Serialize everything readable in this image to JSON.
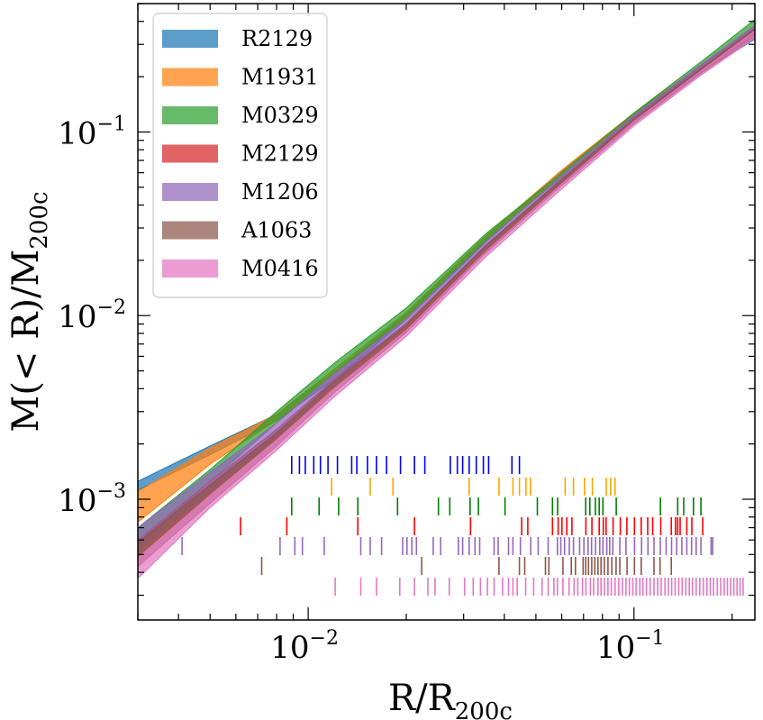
{
  "chart_data": {
    "type": "line",
    "xscale": "log",
    "yscale": "log",
    "xlim": [
      0.003,
      0.235
    ],
    "ylim": [
      0.00022,
      0.5
    ],
    "xlabel": "R/R",
    "xlabel_sub": "200c",
    "ylabel": "M(< R)/M",
    "ylabel_sub": "200c",
    "legend_position": "top-left",
    "x_ticks": [
      {
        "value": 0.01,
        "base": "10",
        "exp": "−2"
      },
      {
        "value": 0.1,
        "base": "10",
        "exp": "−1"
      }
    ],
    "y_ticks": [
      {
        "value": 0.001,
        "base": "10",
        "exp": "−3"
      },
      {
        "value": 0.01,
        "base": "10",
        "exp": "−2"
      },
      {
        "value": 0.1,
        "base": "10",
        "exp": "−1"
      }
    ],
    "series": [
      {
        "name": "R2129",
        "color": "#1f77b4",
        "x": [
          0.003,
          0.005,
          0.008,
          0.012,
          0.02,
          0.035,
          0.06,
          0.1,
          0.16,
          0.235
        ],
        "lower": [
          0.00112,
          0.00175,
          0.00268,
          0.0045,
          0.0095,
          0.025,
          0.058,
          0.12,
          0.21,
          0.32
        ],
        "upper": [
          0.00125,
          0.00195,
          0.0029,
          0.0049,
          0.0102,
          0.0265,
          0.061,
          0.126,
          0.225,
          0.36
        ],
        "ticks": [
          0.0089,
          0.0094,
          0.0098,
          0.0104,
          0.0109,
          0.0115,
          0.0123,
          0.0136,
          0.0141,
          0.0152,
          0.0162,
          0.0174,
          0.0192,
          0.0212,
          0.0228,
          0.0273,
          0.0287,
          0.0298,
          0.0312,
          0.0328,
          0.0345,
          0.0358,
          0.0422,
          0.0445
        ]
      },
      {
        "name": "M1931",
        "color": "#ff7f0e",
        "x": [
          0.003,
          0.005,
          0.008,
          0.012,
          0.02,
          0.035,
          0.06,
          0.1,
          0.16,
          0.235
        ],
        "lower": [
          0.00075,
          0.00155,
          0.0027,
          0.0047,
          0.0097,
          0.0255,
          0.058,
          0.12,
          0.215,
          0.34
        ],
        "upper": [
          0.0011,
          0.0019,
          0.0029,
          0.0051,
          0.0104,
          0.0272,
          0.062,
          0.127,
          0.23,
          0.38
        ],
        "ticks": [
          0.0118,
          0.0155,
          0.0182,
          0.0312,
          0.0385,
          0.0425,
          0.0445,
          0.0466,
          0.0481,
          0.0615,
          0.0652,
          0.0705,
          0.0745,
          0.0822,
          0.0848,
          0.0875
        ]
      },
      {
        "name": "M0329",
        "color": "#2ca02c",
        "x": [
          0.003,
          0.005,
          0.008,
          0.012,
          0.02,
          0.035,
          0.06,
          0.1,
          0.16,
          0.235
        ],
        "lower": [
          0.00055,
          0.00125,
          0.0026,
          0.0048,
          0.0098,
          0.0255,
          0.057,
          0.122,
          0.225,
          0.36
        ],
        "upper": [
          0.0007,
          0.00145,
          0.003,
          0.0055,
          0.011,
          0.0278,
          0.06,
          0.127,
          0.24,
          0.41
        ],
        "ticks": [
          0.0089,
          0.0108,
          0.0124,
          0.0142,
          0.0188,
          0.0251,
          0.0272,
          0.0314,
          0.0333,
          0.0402,
          0.0505,
          0.0562,
          0.0583,
          0.0711,
          0.0732,
          0.0761,
          0.0782,
          0.0803,
          0.0882,
          0.1205,
          0.1362,
          0.1421,
          0.1522,
          0.1605
        ]
      },
      {
        "name": "M2129",
        "color": "#d62728",
        "x": [
          0.003,
          0.005,
          0.008,
          0.012,
          0.02,
          0.035,
          0.06,
          0.1,
          0.16,
          0.235
        ],
        "lower": [
          0.00048,
          0.00105,
          0.0021,
          0.004,
          0.0082,
          0.0222,
          0.052,
          0.113,
          0.21,
          0.34
        ],
        "upper": [
          0.0006,
          0.00125,
          0.0024,
          0.0045,
          0.0091,
          0.0242,
          0.056,
          0.12,
          0.225,
          0.37
        ],
        "ticks": [
          0.0062,
          0.0086,
          0.0142,
          0.0212,
          0.0315,
          0.0452,
          0.0472,
          0.0562,
          0.0585,
          0.0601,
          0.0622,
          0.0645,
          0.0712,
          0.0743,
          0.0782,
          0.0805,
          0.0821,
          0.0863,
          0.0908,
          0.0951,
          0.1003,
          0.1052,
          0.1102,
          0.1142,
          0.1208,
          0.1302,
          0.1341,
          0.1362,
          0.1385,
          0.1452,
          0.1505,
          0.1625
        ]
      },
      {
        "name": "M1206",
        "color": "#9467bd",
        "x": [
          0.003,
          0.005,
          0.008,
          0.012,
          0.02,
          0.035,
          0.06,
          0.1,
          0.16,
          0.235
        ],
        "lower": [
          0.00052,
          0.0011,
          0.0022,
          0.0042,
          0.0088,
          0.0232,
          0.054,
          0.116,
          0.215,
          0.35
        ],
        "upper": [
          0.0007,
          0.0014,
          0.0026,
          0.0048,
          0.0096,
          0.0252,
          0.058,
          0.123,
          0.232,
          0.38
        ],
        "ticks": [
          0.0041,
          0.0082,
          0.0091,
          0.0096,
          0.0112,
          0.0145,
          0.0155,
          0.0168,
          0.0195,
          0.0201,
          0.0208,
          0.0215,
          0.0242,
          0.0255,
          0.0289,
          0.0298,
          0.0312,
          0.0325,
          0.0336,
          0.0372,
          0.0383,
          0.0412,
          0.0425,
          0.0448,
          0.0482,
          0.0508,
          0.0545,
          0.0582,
          0.0596,
          0.0612,
          0.0633,
          0.0652,
          0.0681,
          0.0702,
          0.0723,
          0.0741,
          0.0762,
          0.0785,
          0.0803,
          0.0825,
          0.0842,
          0.0861,
          0.0905,
          0.0945,
          0.1004,
          0.1055,
          0.1104,
          0.1152,
          0.1204,
          0.1255,
          0.1304,
          0.1352,
          0.1402,
          0.1452,
          0.1502,
          0.1552,
          0.1605,
          0.1725,
          0.1745
        ]
      },
      {
        "name": "A1063",
        "color": "#8c564b",
        "x": [
          0.003,
          0.005,
          0.008,
          0.012,
          0.02,
          0.035,
          0.06,
          0.1,
          0.16,
          0.235
        ],
        "lower": [
          0.00043,
          0.00095,
          0.00195,
          0.0038,
          0.0081,
          0.0218,
          0.051,
          0.111,
          0.207,
          0.33
        ],
        "upper": [
          0.00058,
          0.0012,
          0.0023,
          0.0044,
          0.0089,
          0.0238,
          0.055,
          0.118,
          0.22,
          0.365
        ],
        "ticks": [
          0.0072,
          0.0223,
          0.0385,
          0.0445,
          0.0462,
          0.0535,
          0.0548,
          0.0605,
          0.0642,
          0.0661,
          0.0698,
          0.0711,
          0.0725,
          0.0742,
          0.0758,
          0.0775,
          0.0792,
          0.0811,
          0.0832,
          0.0855,
          0.0881,
          0.0905,
          0.0952,
          0.1003,
          0.1052,
          0.1152,
          0.1202,
          0.1302
        ]
      },
      {
        "name": "M0416",
        "color": "#e377c2",
        "x": [
          0.003,
          0.005,
          0.008,
          0.012,
          0.02,
          0.035,
          0.06,
          0.1,
          0.16,
          0.235
        ],
        "lower": [
          0.00037,
          0.0009,
          0.00185,
          0.0036,
          0.0077,
          0.0208,
          0.049,
          0.108,
          0.203,
          0.325
        ],
        "upper": [
          0.00048,
          0.00105,
          0.0021,
          0.004,
          0.0083,
          0.0222,
          0.052,
          0.114,
          0.214,
          0.355
        ],
        "ticks": [
          0.0121,
          0.0145,
          0.0162,
          0.0191,
          0.0212,
          0.0233,
          0.0245,
          0.0271,
          0.0302,
          0.0321,
          0.0338,
          0.0355,
          0.0372,
          0.0395,
          0.0412,
          0.0425,
          0.0438,
          0.0465,
          0.0492,
          0.0522,
          0.0545,
          0.0568,
          0.0582,
          0.0605,
          0.0632,
          0.0655,
          0.0672,
          0.0695,
          0.0712,
          0.0735,
          0.0752,
          0.0775,
          0.0792,
          0.0812,
          0.0832,
          0.0852,
          0.0875,
          0.0898,
          0.0922,
          0.0945,
          0.0968,
          0.0992,
          0.1015,
          0.1042,
          0.1065,
          0.1092,
          0.1121,
          0.1152,
          0.1182,
          0.1212,
          0.1245,
          0.1275,
          0.1305,
          0.1338,
          0.1372,
          0.1405,
          0.1442,
          0.1478,
          0.1512,
          0.1552,
          0.1592,
          0.1632,
          0.1675,
          0.1715,
          0.1755,
          0.1802,
          0.1845,
          0.1892,
          0.1935,
          0.1982,
          0.2025,
          0.2072,
          0.2115,
          0.2162
        ]
      }
    ]
  }
}
